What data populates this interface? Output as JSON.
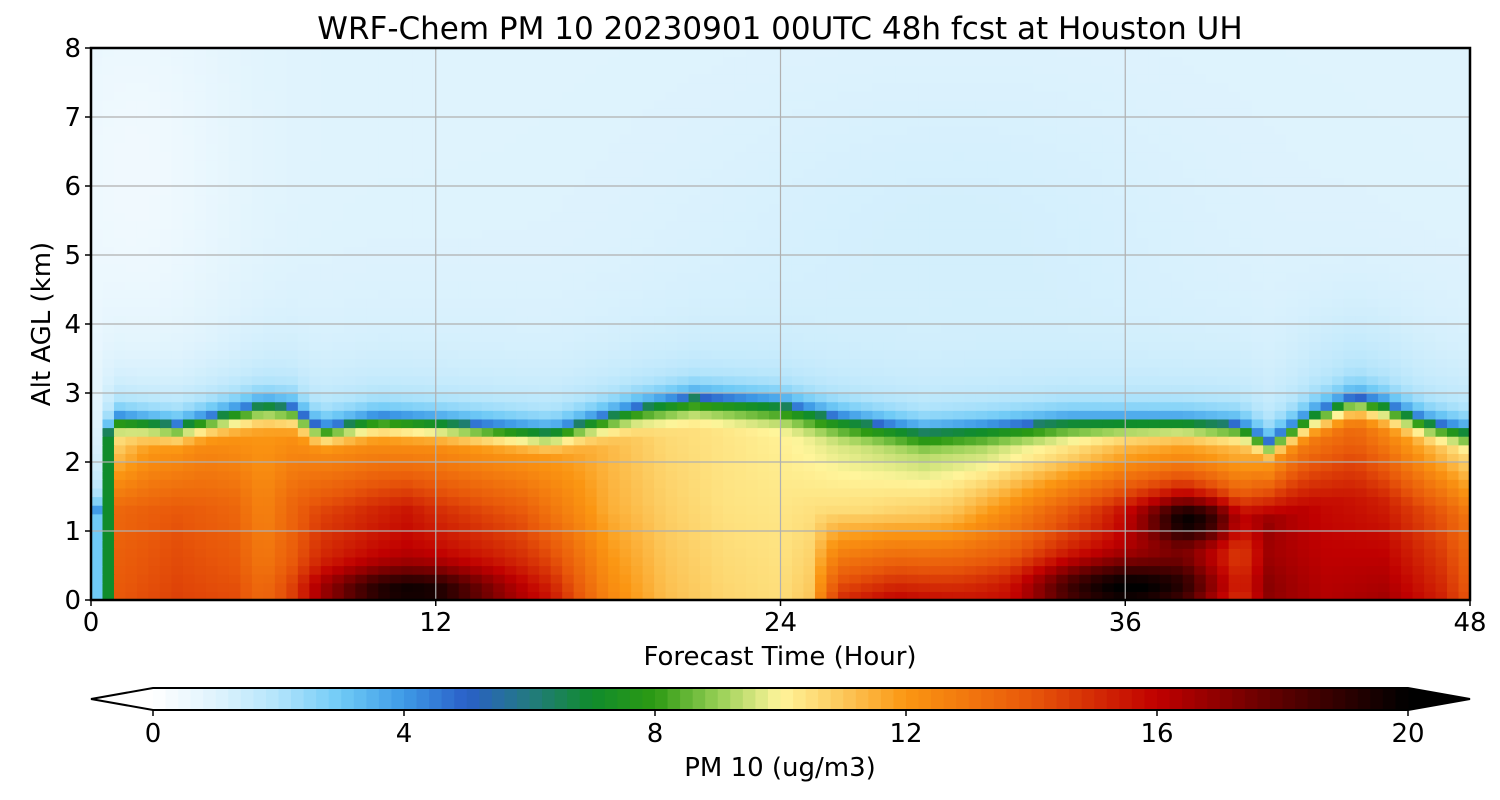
{
  "chart_data": {
    "type": "heatmap",
    "title": "WRF-Chem PM 10  20230901 00UTC 48h fcst at Houston UH",
    "xlabel": "Forecast Time (Hour)",
    "ylabel": "Alt AGL (km)",
    "xlim": [
      0,
      48
    ],
    "ylim": [
      0,
      8
    ],
    "xticks": [
      0,
      12,
      24,
      36,
      48
    ],
    "yticks": [
      0,
      1,
      2,
      3,
      4,
      5,
      6,
      7,
      8
    ],
    "grid": true,
    "colorbar": {
      "label": "PM 10  (ug/m3)",
      "orientation": "horizontal",
      "placement": "bottom",
      "range": [
        0,
        20
      ],
      "ticks": [
        0,
        4,
        8,
        12,
        16,
        20
      ],
      "extend": "both",
      "color_stops": [
        {
          "value": 0,
          "color": "#ffffff"
        },
        {
          "value": 1,
          "color": "#dff3fd"
        },
        {
          "value": 2,
          "color": "#b2e4fb"
        },
        {
          "value": 3,
          "color": "#6fcaf6"
        },
        {
          "value": 4,
          "color": "#3e9ae6"
        },
        {
          "value": 5,
          "color": "#2a5fc8"
        },
        {
          "value": 6,
          "color": "#237a80"
        },
        {
          "value": 7,
          "color": "#108c2c"
        },
        {
          "value": 8,
          "color": "#2d9a13"
        },
        {
          "value": 9,
          "color": "#96cf55"
        },
        {
          "value": 10,
          "color": "#fff59b"
        },
        {
          "value": 11,
          "color": "#fcc75a"
        },
        {
          "value": 12,
          "color": "#fb9612"
        },
        {
          "value": 14,
          "color": "#e8570a"
        },
        {
          "value": 16,
          "color": "#c00000"
        },
        {
          "value": 18,
          "color": "#5a0000"
        },
        {
          "value": 20,
          "color": "#000000"
        }
      ]
    }
  }
}
